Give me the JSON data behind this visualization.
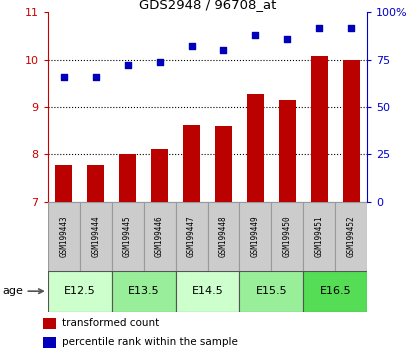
{
  "title": "GDS2948 / 96708_at",
  "samples": [
    "GSM199443",
    "GSM199444",
    "GSM199445",
    "GSM199446",
    "GSM199447",
    "GSM199448",
    "GSM199449",
    "GSM199450",
    "GSM199451",
    "GSM199452"
  ],
  "bar_values": [
    7.77,
    7.77,
    8.0,
    8.12,
    8.63,
    8.6,
    9.28,
    9.14,
    10.07,
    10.0
  ],
  "scatter_values": [
    66,
    66,
    72,
    74,
    82,
    80,
    88,
    86,
    92,
    92
  ],
  "age_groups": [
    {
      "label": "E12.5",
      "start": 0,
      "end": 2
    },
    {
      "label": "E13.5",
      "start": 2,
      "end": 4
    },
    {
      "label": "E14.5",
      "start": 4,
      "end": 6
    },
    {
      "label": "E15.5",
      "start": 6,
      "end": 8
    },
    {
      "label": "E16.5",
      "start": 8,
      "end": 10
    }
  ],
  "age_colors": [
    "#ccffcc",
    "#99ee99",
    "#ccffcc",
    "#99ee99",
    "#55dd55"
  ],
  "ylim_left": [
    7,
    11
  ],
  "ylim_right": [
    0,
    100
  ],
  "yticks_left": [
    7,
    8,
    9,
    10,
    11
  ],
  "yticks_right": [
    0,
    25,
    50,
    75,
    100
  ],
  "yticklabels_right": [
    "0",
    "25",
    "50",
    "75",
    "100%"
  ],
  "bar_color": "#bb0000",
  "scatter_color": "#0000bb",
  "bar_bottom": 7,
  "left_axis_color": "#cc0000",
  "right_axis_color": "#0000cc",
  "legend_bar_label": "transformed count",
  "legend_scatter_label": "percentile rank within the sample",
  "sample_box_color": "#cccccc",
  "sample_box_edge": "#999999"
}
